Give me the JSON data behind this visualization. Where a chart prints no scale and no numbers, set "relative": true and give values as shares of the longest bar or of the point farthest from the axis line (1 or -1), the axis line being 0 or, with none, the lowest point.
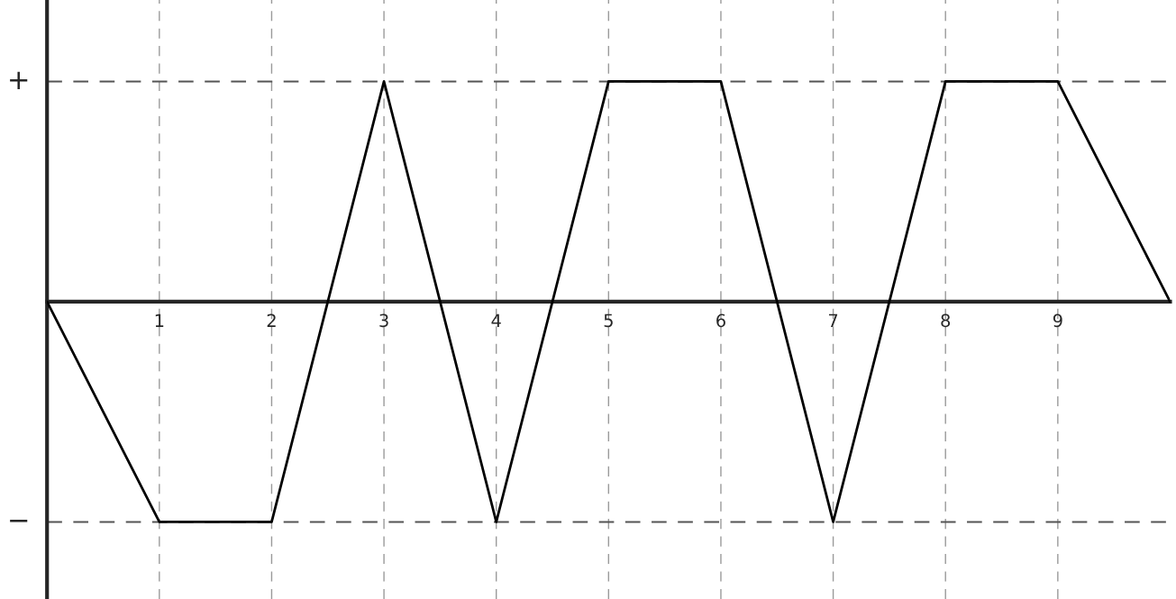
{
  "chart_data": {
    "type": "line",
    "x": [
      0,
      1,
      2,
      3,
      4,
      5,
      6,
      7,
      8,
      9,
      10
    ],
    "series": [
      {
        "color": "#000000",
        "values": [
          0,
          -1,
          -1,
          1,
          -1,
          1,
          1,
          -1,
          1,
          1,
          0
        ]
      }
    ],
    "xlim": [
      0,
      10
    ],
    "relative": true,
    "xticks": [
      {
        "value": 0,
        "label": null
      },
      1,
      2,
      3,
      4,
      5,
      6,
      7,
      8,
      9
    ],
    "ref_lines": [
      {
        "axis": "y",
        "value": 1,
        "label": "+",
        "line_style": "dashed",
        "color": "#555555"
      },
      {
        "axis": "y",
        "value": -1,
        "label": "−",
        "line_style": "dashed",
        "color": "#555555"
      }
    ],
    "grid": "x",
    "line_style": "solid",
    "marker": "none",
    "legend": false
  }
}
